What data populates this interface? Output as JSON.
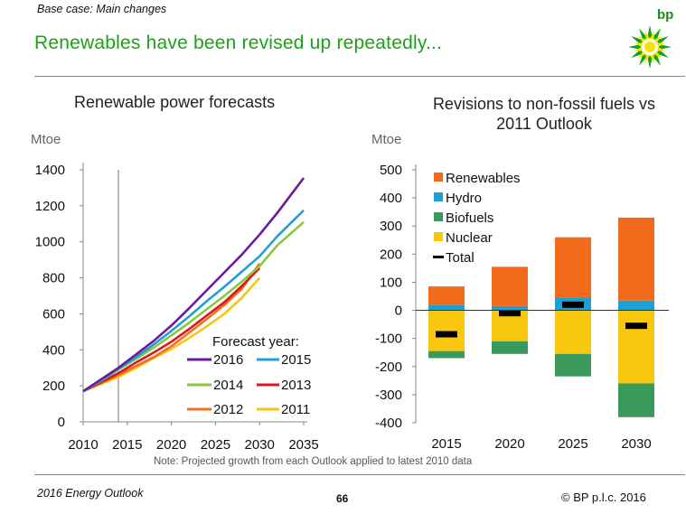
{
  "header": {
    "subtitle": "Base case: Main changes",
    "title": "Renewables have been revised up repeatedly...",
    "logo_text": "bp"
  },
  "footer": {
    "left": "2016 Energy Outlook",
    "page": "66",
    "right": "© BP p.l.c. 2016",
    "note": "Note: Projected growth from each Outlook applied to latest 2010 data"
  },
  "colors": {
    "brand_green": "#1aa31a",
    "2016": "#6a1b9a",
    "2015": "#1e9fd6",
    "2014": "#8dc63f",
    "2013": "#d7191c",
    "2012": "#f07020",
    "2011": "#f5c518",
    "renewables": "#f26b1d",
    "hydro": "#1e9fd6",
    "biofuels": "#3a9a5b",
    "nuclear": "#f9c80e",
    "total": "#000000"
  },
  "chart_data": [
    {
      "type": "line",
      "title": "Renewable power forecasts",
      "unit": "Mtoe",
      "xlim": [
        2010,
        2035
      ],
      "ylim": [
        0,
        1400
      ],
      "xticks": [
        2010,
        2015,
        2020,
        2025,
        2030,
        2035
      ],
      "yticks": [
        0,
        200,
        400,
        600,
        800,
        1000,
        1200,
        1400
      ],
      "vline": 2014,
      "legend_title": "Forecast year:",
      "series": [
        {
          "name": "2016",
          "x": [
            2010,
            2012,
            2014,
            2016,
            2018,
            2020,
            2022,
            2024,
            2026,
            2028,
            2030,
            2032,
            2035
          ],
          "values": [
            170,
            235,
            300,
            375,
            450,
            535,
            630,
            730,
            830,
            930,
            1040,
            1160,
            1355
          ]
        },
        {
          "name": "2015",
          "x": [
            2010,
            2012,
            2014,
            2016,
            2018,
            2020,
            2022,
            2024,
            2026,
            2028,
            2030,
            2032,
            2035
          ],
          "values": [
            170,
            230,
            295,
            360,
            430,
            505,
            585,
            670,
            750,
            835,
            920,
            1030,
            1175
          ]
        },
        {
          "name": "2014",
          "x": [
            2010,
            2012,
            2014,
            2016,
            2018,
            2020,
            2022,
            2024,
            2026,
            2028,
            2030,
            2032,
            2035
          ],
          "values": [
            170,
            228,
            290,
            350,
            412,
            480,
            550,
            625,
            700,
            780,
            865,
            980,
            1110
          ]
        },
        {
          "name": "2013",
          "x": [
            2010,
            2012,
            2014,
            2016,
            2018,
            2020,
            2022,
            2024,
            2026,
            2028,
            2030
          ],
          "values": [
            170,
            220,
            270,
            330,
            385,
            445,
            515,
            590,
            665,
            755,
            855
          ]
        },
        {
          "name": "2012",
          "x": [
            2010,
            2012,
            2014,
            2016,
            2018,
            2020,
            2022,
            2024,
            2026,
            2028,
            2030
          ],
          "values": [
            170,
            215,
            260,
            310,
            360,
            420,
            495,
            570,
            650,
            740,
            880
          ]
        },
        {
          "name": "2011",
          "x": [
            2010,
            2012,
            2014,
            2016,
            2018,
            2020,
            2022,
            2024,
            2026,
            2028,
            2030
          ],
          "values": [
            170,
            210,
            250,
            300,
            355,
            405,
            465,
            530,
            600,
            690,
            800
          ]
        }
      ]
    },
    {
      "type": "bar",
      "stacked": true,
      "title": "Revisions to non-fossil fuels vs 2011 Outlook",
      "unit": "Mtoe",
      "categories": [
        "2015",
        "2020",
        "2025",
        "2030"
      ],
      "ylim": [
        -400,
        500
      ],
      "yticks": [
        500,
        400,
        300,
        200,
        100,
        0,
        -100,
        -200,
        -300,
        -400
      ],
      "series": [
        {
          "name": "Renewables",
          "values": [
            65,
            140,
            215,
            295
          ]
        },
        {
          "name": "Hydro",
          "values": [
            20,
            15,
            45,
            35
          ]
        },
        {
          "name": "Biofuels",
          "values": [
            -25,
            -45,
            -80,
            -120
          ]
        },
        {
          "name": "Nuclear",
          "values": [
            -145,
            -110,
            -155,
            -260
          ]
        },
        {
          "name": "Total",
          "values": [
            -85,
            -10,
            20,
            -55
          ]
        }
      ]
    }
  ]
}
